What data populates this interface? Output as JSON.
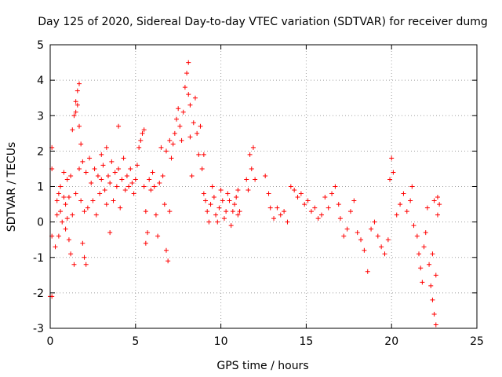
{
  "chart_data": {
    "type": "scatter",
    "title": "Day 125 of 2020, Sidereal Day-to-day VTEC variation (SDTVAR) for receiver dumg",
    "xlabel": "GPS time / hours",
    "ylabel": "SDTVAR / TECUs",
    "xlim": [
      0,
      25
    ],
    "ylim": [
      -3,
      5
    ],
    "xticks": [
      "0",
      "5",
      "10",
      "15",
      "20",
      "25"
    ],
    "yticks": [
      "-3",
      "-2",
      "-1",
      "0",
      "1",
      "2",
      "3",
      "4",
      "5"
    ],
    "grid": true,
    "marker": "+",
    "color": "#ff0000",
    "series": [
      {
        "name": "SDTVAR",
        "points": [
          [
            0.0,
            -2.1
          ],
          [
            0.1,
            -2.1
          ],
          [
            0.1,
            2.1
          ],
          [
            0.1,
            1.5
          ],
          [
            0.1,
            -0.4
          ],
          [
            0.3,
            -0.7
          ],
          [
            0.4,
            0.6
          ],
          [
            0.4,
            0.2
          ],
          [
            0.5,
            0.8
          ],
          [
            0.5,
            -0.4
          ],
          [
            0.6,
            0.3
          ],
          [
            0.6,
            1.0
          ],
          [
            0.7,
            0.0
          ],
          [
            0.8,
            0.7
          ],
          [
            0.8,
            1.4
          ],
          [
            0.9,
            -0.2
          ],
          [
            0.9,
            0.5
          ],
          [
            1.0,
            1.2
          ],
          [
            1.0,
            0.1
          ],
          [
            1.1,
            -0.5
          ],
          [
            1.1,
            0.7
          ],
          [
            1.2,
            1.3
          ],
          [
            1.2,
            -0.9
          ],
          [
            1.3,
            0.2
          ],
          [
            1.3,
            2.6
          ],
          [
            1.4,
            3.0
          ],
          [
            1.4,
            -1.2
          ],
          [
            1.5,
            3.4
          ],
          [
            1.5,
            3.1
          ],
          [
            1.5,
            0.8
          ],
          [
            1.6,
            3.7
          ],
          [
            1.6,
            3.3
          ],
          [
            1.7,
            3.9
          ],
          [
            1.7,
            2.7
          ],
          [
            1.7,
            1.5
          ],
          [
            1.8,
            2.2
          ],
          [
            1.8,
            0.6
          ],
          [
            1.9,
            1.7
          ],
          [
            1.9,
            -0.6
          ],
          [
            2.0,
            -1.0
          ],
          [
            2.0,
            0.3
          ],
          [
            2.1,
            -1.2
          ],
          [
            2.1,
            1.4
          ],
          [
            2.2,
            0.4
          ],
          [
            2.3,
            1.8
          ],
          [
            2.4,
            1.1
          ],
          [
            2.5,
            0.6
          ],
          [
            2.6,
            1.5
          ],
          [
            2.7,
            0.2
          ],
          [
            2.8,
            1.3
          ],
          [
            2.9,
            0.8
          ],
          [
            3.0,
            1.9
          ],
          [
            3.0,
            1.2
          ],
          [
            3.1,
            1.6
          ],
          [
            3.2,
            0.9
          ],
          [
            3.3,
            2.1
          ],
          [
            3.3,
            0.5
          ],
          [
            3.4,
            1.3
          ],
          [
            3.5,
            -0.3
          ],
          [
            3.5,
            1.1
          ],
          [
            3.6,
            1.7
          ],
          [
            3.7,
            0.6
          ],
          [
            3.8,
            1.4
          ],
          [
            3.9,
            1.0
          ],
          [
            4.0,
            2.7
          ],
          [
            4.0,
            1.5
          ],
          [
            4.1,
            0.4
          ],
          [
            4.2,
            1.2
          ],
          [
            4.3,
            1.8
          ],
          [
            4.4,
            0.9
          ],
          [
            4.5,
            1.3
          ],
          [
            4.6,
            1.0
          ],
          [
            4.7,
            1.5
          ],
          [
            4.8,
            1.1
          ],
          [
            4.9,
            0.8
          ],
          [
            5.0,
            1.2
          ],
          [
            5.1,
            1.6
          ],
          [
            5.2,
            2.1
          ],
          [
            5.3,
            2.3
          ],
          [
            5.4,
            2.5
          ],
          [
            5.5,
            2.6
          ],
          [
            5.5,
            1.0
          ],
          [
            5.6,
            -0.6
          ],
          [
            5.6,
            0.3
          ],
          [
            5.7,
            -0.3
          ],
          [
            5.8,
            1.2
          ],
          [
            5.9,
            0.9
          ],
          [
            6.0,
            1.4
          ],
          [
            6.1,
            1.0
          ],
          [
            6.2,
            0.2
          ],
          [
            6.3,
            -0.4
          ],
          [
            6.4,
            1.1
          ],
          [
            6.5,
            2.1
          ],
          [
            6.6,
            1.3
          ],
          [
            6.7,
            0.5
          ],
          [
            6.8,
            -0.8
          ],
          [
            6.8,
            2.0
          ],
          [
            6.9,
            -1.1
          ],
          [
            7.0,
            0.3
          ],
          [
            7.0,
            2.3
          ],
          [
            7.1,
            1.8
          ],
          [
            7.2,
            2.2
          ],
          [
            7.3,
            2.5
          ],
          [
            7.4,
            2.9
          ],
          [
            7.5,
            3.2
          ],
          [
            7.6,
            2.7
          ],
          [
            7.7,
            2.3
          ],
          [
            7.8,
            3.1
          ],
          [
            7.9,
            3.8
          ],
          [
            8.0,
            4.2
          ],
          [
            8.1,
            4.5
          ],
          [
            8.1,
            3.6
          ],
          [
            8.2,
            3.3
          ],
          [
            8.2,
            2.4
          ],
          [
            8.3,
            1.3
          ],
          [
            8.4,
            2.8
          ],
          [
            8.5,
            3.5
          ],
          [
            8.6,
            2.5
          ],
          [
            8.7,
            1.9
          ],
          [
            8.8,
            2.7
          ],
          [
            8.9,
            1.5
          ],
          [
            9.0,
            1.9
          ],
          [
            9.0,
            0.8
          ],
          [
            9.1,
            0.6
          ],
          [
            9.2,
            0.3
          ],
          [
            9.3,
            0.0
          ],
          [
            9.4,
            0.5
          ],
          [
            9.5,
            1.0
          ],
          [
            9.6,
            0.7
          ],
          [
            9.7,
            0.2
          ],
          [
            9.8,
            0.0
          ],
          [
            9.9,
            0.4
          ],
          [
            10.0,
            0.9
          ],
          [
            10.1,
            0.6
          ],
          [
            10.2,
            0.1
          ],
          [
            10.3,
            0.3
          ],
          [
            10.4,
            0.8
          ],
          [
            10.5,
            0.6
          ],
          [
            10.6,
            -0.1
          ],
          [
            10.7,
            0.3
          ],
          [
            10.8,
            0.5
          ],
          [
            10.9,
            0.7
          ],
          [
            11.0,
            0.2
          ],
          [
            11.0,
            0.9
          ],
          [
            11.1,
            0.3
          ],
          [
            11.7,
            1.9
          ],
          [
            11.8,
            1.5
          ],
          [
            11.9,
            2.1
          ],
          [
            12.0,
            1.2
          ],
          [
            11.5,
            1.2
          ],
          [
            11.6,
            0.9
          ],
          [
            12.6,
            1.3
          ],
          [
            12.8,
            0.8
          ],
          [
            12.9,
            0.4
          ],
          [
            13.1,
            0.1
          ],
          [
            13.3,
            0.4
          ],
          [
            13.5,
            0.2
          ],
          [
            13.7,
            0.3
          ],
          [
            13.9,
            0.0
          ],
          [
            14.1,
            1.0
          ],
          [
            14.3,
            0.9
          ],
          [
            14.5,
            0.7
          ],
          [
            14.7,
            0.8
          ],
          [
            14.9,
            0.5
          ],
          [
            15.1,
            0.6
          ],
          [
            15.3,
            0.3
          ],
          [
            15.5,
            0.4
          ],
          [
            15.7,
            0.1
          ],
          [
            15.9,
            0.2
          ],
          [
            16.1,
            0.7
          ],
          [
            16.3,
            0.4
          ],
          [
            16.5,
            0.8
          ],
          [
            16.7,
            1.0
          ],
          [
            16.9,
            0.5
          ],
          [
            17.0,
            0.1
          ],
          [
            17.2,
            -0.4
          ],
          [
            17.4,
            -0.2
          ],
          [
            17.6,
            0.3
          ],
          [
            17.8,
            0.6
          ],
          [
            18.0,
            -0.3
          ],
          [
            18.2,
            -0.5
          ],
          [
            18.4,
            -0.8
          ],
          [
            18.6,
            -1.4
          ],
          [
            18.8,
            -0.2
          ],
          [
            19.0,
            0.0
          ],
          [
            19.2,
            -0.4
          ],
          [
            19.4,
            -0.7
          ],
          [
            19.6,
            -0.9
          ],
          [
            19.8,
            -0.5
          ],
          [
            19.9,
            1.2
          ],
          [
            20.0,
            1.8
          ],
          [
            20.1,
            1.4
          ],
          [
            20.3,
            0.2
          ],
          [
            20.5,
            0.5
          ],
          [
            20.7,
            0.8
          ],
          [
            20.9,
            0.3
          ],
          [
            21.1,
            0.6
          ],
          [
            21.2,
            1.0
          ],
          [
            21.3,
            -0.1
          ],
          [
            21.5,
            -0.4
          ],
          [
            21.6,
            -0.9
          ],
          [
            21.7,
            -1.3
          ],
          [
            21.8,
            -1.7
          ],
          [
            21.9,
            -0.7
          ],
          [
            22.0,
            -0.3
          ],
          [
            22.1,
            0.4
          ],
          [
            22.2,
            -1.2
          ],
          [
            22.3,
            -1.8
          ],
          [
            22.4,
            -2.2
          ],
          [
            22.5,
            -2.6
          ],
          [
            22.6,
            -2.9
          ],
          [
            22.6,
            -1.5
          ],
          [
            22.7,
            0.2
          ],
          [
            22.7,
            0.7
          ],
          [
            22.8,
            0.5
          ],
          [
            22.5,
            0.6
          ],
          [
            22.4,
            -0.9
          ]
        ]
      }
    ]
  }
}
